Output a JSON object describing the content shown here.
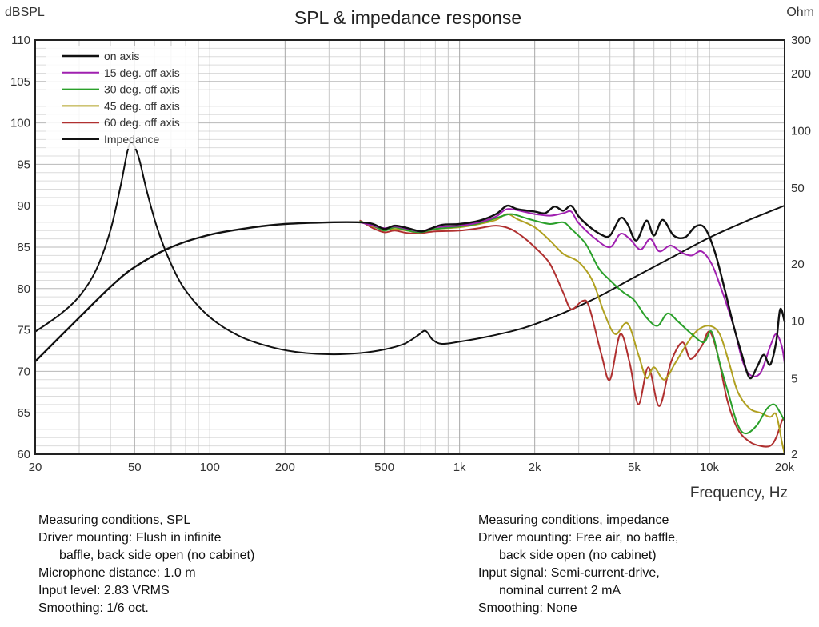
{
  "chart_data": {
    "type": "line",
    "title": "SPL & impedance response",
    "xlabel": "Frequency, Hz",
    "ylabel": "dBSPL",
    "y2label": "Ohm",
    "xscale": "log",
    "xlim": [
      20,
      20000
    ],
    "ylim": [
      60,
      110
    ],
    "y2lim": [
      2,
      300
    ],
    "y2scale": "log",
    "grid": true,
    "legend_position": "top-left",
    "x_ticks": [
      20,
      50,
      100,
      200,
      500,
      1000,
      2000,
      5000,
      10000,
      20000
    ],
    "x_tick_labels": [
      "20",
      "50",
      "100",
      "200",
      "500",
      "1k",
      "2k",
      "5k",
      "10k",
      "20k"
    ],
    "y_ticks": [
      60,
      65,
      70,
      75,
      80,
      85,
      90,
      95,
      100,
      105,
      110
    ],
    "y_tick_labels": [
      "60",
      "65",
      "70",
      "75",
      "80",
      "85",
      "90",
      "95",
      "100",
      "105",
      "110"
    ],
    "y2_ticks": [
      2,
      5,
      10,
      20,
      50,
      100,
      200,
      300
    ],
    "y2_tick_labels": [
      "2",
      "5",
      "10",
      "20",
      "50",
      "100",
      "200",
      "300"
    ],
    "series": [
      {
        "name": "on axis",
        "color": "#111111",
        "axis": "left",
        "points": [
          [
            20,
            71.2
          ],
          [
            30,
            76.5
          ],
          [
            40,
            80.2
          ],
          [
            50,
            82.6
          ],
          [
            70,
            85.0
          ],
          [
            100,
            86.5
          ],
          [
            150,
            87.4
          ],
          [
            200,
            87.8
          ],
          [
            300,
            88.0
          ],
          [
            400,
            88.0
          ],
          [
            450,
            87.8
          ],
          [
            500,
            87.2
          ],
          [
            550,
            87.6
          ],
          [
            620,
            87.3
          ],
          [
            700,
            86.9
          ],
          [
            760,
            87.2
          ],
          [
            850,
            87.7
          ],
          [
            1000,
            87.8
          ],
          [
            1200,
            88.2
          ],
          [
            1400,
            89.0
          ],
          [
            1550,
            90.0
          ],
          [
            1700,
            89.6
          ],
          [
            2000,
            89.3
          ],
          [
            2200,
            89.1
          ],
          [
            2400,
            89.9
          ],
          [
            2600,
            89.4
          ],
          [
            2800,
            90.0
          ],
          [
            3000,
            88.7
          ],
          [
            3300,
            87.5
          ],
          [
            3700,
            86.5
          ],
          [
            4000,
            86.4
          ],
          [
            4400,
            88.5
          ],
          [
            4700,
            87.8
          ],
          [
            5100,
            85.8
          ],
          [
            5600,
            88.2
          ],
          [
            6000,
            86.4
          ],
          [
            6500,
            88.3
          ],
          [
            7200,
            86.4
          ],
          [
            8000,
            86.2
          ],
          [
            8800,
            87.5
          ],
          [
            9600,
            87.3
          ],
          [
            10500,
            84.5
          ],
          [
            11500,
            80.0
          ],
          [
            12500,
            75.5
          ],
          [
            13500,
            72.0
          ],
          [
            14500,
            69.2
          ],
          [
            15500,
            70.5
          ],
          [
            16500,
            72.0
          ],
          [
            17500,
            70.8
          ],
          [
            18500,
            73.5
          ],
          [
            19200,
            77.5
          ],
          [
            20000,
            76.0
          ]
        ]
      },
      {
        "name": "15 deg. off axis",
        "color": "#a020b0",
        "axis": "left",
        "points": [
          [
            400,
            88.0
          ],
          [
            450,
            87.6
          ],
          [
            500,
            87.3
          ],
          [
            550,
            87.5
          ],
          [
            620,
            87.2
          ],
          [
            700,
            86.9
          ],
          [
            800,
            87.4
          ],
          [
            1000,
            87.6
          ],
          [
            1200,
            88.0
          ],
          [
            1400,
            88.7
          ],
          [
            1550,
            89.6
          ],
          [
            1800,
            89.3
          ],
          [
            2000,
            89.0
          ],
          [
            2300,
            88.8
          ],
          [
            2600,
            89.1
          ],
          [
            2800,
            89.3
          ],
          [
            3000,
            87.9
          ],
          [
            3500,
            86.0
          ],
          [
            4000,
            85.0
          ],
          [
            4400,
            86.6
          ],
          [
            4800,
            86.0
          ],
          [
            5300,
            84.7
          ],
          [
            5800,
            86.0
          ],
          [
            6300,
            84.5
          ],
          [
            7000,
            85.2
          ],
          [
            7800,
            84.3
          ],
          [
            8500,
            84.0
          ],
          [
            9300,
            84.5
          ],
          [
            10200,
            83.0
          ],
          [
            11000,
            80.5
          ],
          [
            12500,
            75.5
          ],
          [
            13500,
            71.5
          ],
          [
            14500,
            69.6
          ],
          [
            16000,
            69.8
          ],
          [
            17500,
            73.0
          ],
          [
            18500,
            74.5
          ],
          [
            19500,
            73.0
          ],
          [
            20000,
            71.0
          ]
        ]
      },
      {
        "name": "30 deg. off axis",
        "color": "#2aa02a",
        "axis": "left",
        "points": [
          [
            400,
            88.1
          ],
          [
            450,
            87.6
          ],
          [
            500,
            87.0
          ],
          [
            550,
            87.4
          ],
          [
            620,
            87.0
          ],
          [
            700,
            86.8
          ],
          [
            800,
            87.2
          ],
          [
            1000,
            87.5
          ],
          [
            1200,
            87.9
          ],
          [
            1400,
            88.5
          ],
          [
            1600,
            89.0
          ],
          [
            1800,
            88.6
          ],
          [
            2000,
            88.2
          ],
          [
            2300,
            87.8
          ],
          [
            2600,
            88.0
          ],
          [
            2800,
            87.2
          ],
          [
            3200,
            85.4
          ],
          [
            3600,
            82.5
          ],
          [
            4000,
            81.0
          ],
          [
            4500,
            79.6
          ],
          [
            5000,
            78.6
          ],
          [
            5600,
            76.5
          ],
          [
            6200,
            75.5
          ],
          [
            6800,
            77.0
          ],
          [
            7500,
            76.0
          ],
          [
            8500,
            74.5
          ],
          [
            9500,
            73.5
          ],
          [
            10200,
            74.8
          ],
          [
            11000,
            71.0
          ],
          [
            12000,
            67.0
          ],
          [
            13000,
            63.5
          ],
          [
            14000,
            62.5
          ],
          [
            15500,
            63.5
          ],
          [
            17000,
            65.5
          ],
          [
            18200,
            66.0
          ],
          [
            19200,
            65.0
          ],
          [
            20000,
            64.0
          ]
        ]
      },
      {
        "name": "45 deg. off axis",
        "color": "#b0a020",
        "axis": "left",
        "points": [
          [
            400,
            88.1
          ],
          [
            450,
            87.5
          ],
          [
            500,
            87.1
          ],
          [
            550,
            87.2
          ],
          [
            620,
            87.0
          ],
          [
            700,
            86.8
          ],
          [
            800,
            87.2
          ],
          [
            1000,
            87.4
          ],
          [
            1200,
            87.8
          ],
          [
            1400,
            88.3
          ],
          [
            1550,
            89.0
          ],
          [
            1700,
            88.4
          ],
          [
            2000,
            87.4
          ],
          [
            2300,
            85.8
          ],
          [
            2600,
            84.2
          ],
          [
            3000,
            83.2
          ],
          [
            3400,
            81.0
          ],
          [
            3800,
            77.0
          ],
          [
            4200,
            74.5
          ],
          [
            4700,
            75.8
          ],
          [
            5200,
            72.0
          ],
          [
            5600,
            69.2
          ],
          [
            6000,
            70.5
          ],
          [
            6600,
            69.0
          ],
          [
            7300,
            71.0
          ],
          [
            8200,
            73.5
          ],
          [
            9000,
            75.0
          ],
          [
            10000,
            75.5
          ],
          [
            11000,
            74.5
          ],
          [
            12000,
            71.0
          ],
          [
            13000,
            67.5
          ],
          [
            14500,
            65.5
          ],
          [
            16000,
            65.0
          ],
          [
            17500,
            64.5
          ],
          [
            18500,
            64.8
          ],
          [
            19500,
            61.5
          ],
          [
            20000,
            60.0
          ]
        ]
      },
      {
        "name": "60 deg. off axis",
        "color": "#b03030",
        "axis": "left",
        "points": [
          [
            400,
            88.2
          ],
          [
            450,
            87.3
          ],
          [
            500,
            86.8
          ],
          [
            550,
            87.0
          ],
          [
            620,
            86.7
          ],
          [
            700,
            86.7
          ],
          [
            800,
            86.9
          ],
          [
            1000,
            87.0
          ],
          [
            1200,
            87.3
          ],
          [
            1400,
            87.6
          ],
          [
            1600,
            87.2
          ],
          [
            1800,
            86.2
          ],
          [
            2000,
            85.0
          ],
          [
            2300,
            83.0
          ],
          [
            2600,
            79.5
          ],
          [
            2800,
            77.5
          ],
          [
            3100,
            78.5
          ],
          [
            3300,
            77.8
          ],
          [
            3700,
            72.0
          ],
          [
            4000,
            69.0
          ],
          [
            4400,
            74.5
          ],
          [
            4800,
            71.0
          ],
          [
            5200,
            66.0
          ],
          [
            5700,
            70.5
          ],
          [
            6300,
            65.8
          ],
          [
            7000,
            71.0
          ],
          [
            7800,
            73.5
          ],
          [
            8400,
            71.5
          ],
          [
            9300,
            73.0
          ],
          [
            10000,
            74.8
          ],
          [
            10800,
            72.0
          ],
          [
            11800,
            66.5
          ],
          [
            13000,
            63.0
          ],
          [
            14500,
            61.5
          ],
          [
            16000,
            61.0
          ],
          [
            17500,
            61.0
          ],
          [
            18500,
            62.0
          ],
          [
            19500,
            64.0
          ],
          [
            20000,
            64.5
          ]
        ]
      },
      {
        "name": "Impedance",
        "color": "#111111",
        "axis": "right",
        "points": [
          [
            20,
            8.8
          ],
          [
            25,
            10.8
          ],
          [
            30,
            13.5
          ],
          [
            35,
            18.5
          ],
          [
            40,
            30
          ],
          [
            44,
            52
          ],
          [
            47,
            80
          ],
          [
            49,
            86
          ],
          [
            52,
            72
          ],
          [
            56,
            48
          ],
          [
            62,
            30
          ],
          [
            70,
            20
          ],
          [
            80,
            14.5
          ],
          [
            100,
            10.5
          ],
          [
            130,
            8.4
          ],
          [
            170,
            7.4
          ],
          [
            220,
            6.9
          ],
          [
            300,
            6.7
          ],
          [
            400,
            6.8
          ],
          [
            500,
            7.1
          ],
          [
            600,
            7.6
          ],
          [
            680,
            8.4
          ],
          [
            730,
            8.9
          ],
          [
            780,
            8.0
          ],
          [
            850,
            7.6
          ],
          [
            1000,
            7.8
          ],
          [
            1300,
            8.3
          ],
          [
            1800,
            9.2
          ],
          [
            2500,
            10.8
          ],
          [
            3500,
            13.2
          ],
          [
            5000,
            17.0
          ],
          [
            7000,
            21.5
          ],
          [
            10000,
            27.5
          ],
          [
            14000,
            33.5
          ],
          [
            20000,
            40.5
          ]
        ]
      }
    ]
  },
  "notes": {
    "spl": {
      "heading": "Measuring conditions, SPL",
      "lines": [
        "Driver mounting: Flush in infinite",
        "baffle, back side open  (no cabinet)",
        "Microphone distance: 1.0 m",
        "Input level: 2.83 VRMS",
        "Smoothing: 1/6 oct."
      ]
    },
    "impedance": {
      "heading": "Measuring conditions, impedance",
      "lines": [
        "Driver mounting: Free air, no baffle,",
        "back side open (no cabinet)",
        "Input signal: Semi-current-drive,",
        "nominal current 2 mA",
        "Smoothing: None"
      ]
    }
  }
}
